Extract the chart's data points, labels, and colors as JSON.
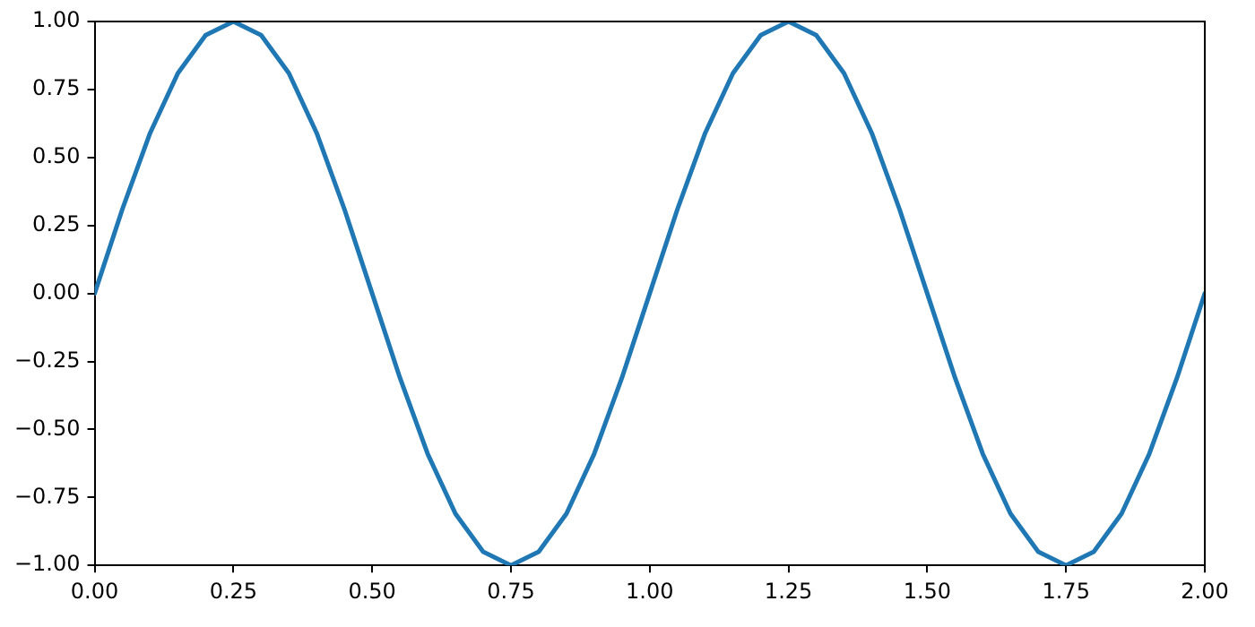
{
  "chart_data": {
    "type": "line",
    "x": [
      0,
      0.05,
      0.1,
      0.15,
      0.2,
      0.25,
      0.3,
      0.35,
      0.4,
      0.45,
      0.5,
      0.55,
      0.6,
      0.65,
      0.7,
      0.75,
      0.8,
      0.85,
      0.9,
      0.95,
      1,
      1.05,
      1.1,
      1.15,
      1.2,
      1.25,
      1.3,
      1.35,
      1.4,
      1.45,
      1.5,
      1.55,
      1.6,
      1.65,
      1.7,
      1.75,
      1.8,
      1.85,
      1.9,
      1.95,
      2
    ],
    "series": [
      {
        "color": "#1f77b4",
        "values": [
          0,
          0.31,
          0.59,
          0.81,
          0.95,
          1,
          0.95,
          0.81,
          0.59,
          0.31,
          0,
          -0.31,
          -0.59,
          -0.81,
          -0.95,
          -1,
          -0.95,
          -0.81,
          -0.59,
          -0.31,
          0,
          0.31,
          0.59,
          0.81,
          0.95,
          1,
          0.95,
          0.81,
          0.59,
          0.31,
          0,
          -0.31,
          -0.59,
          -0.81,
          -0.95,
          -1,
          -0.95,
          -0.81,
          -0.59,
          -0.31,
          0
        ]
      }
    ],
    "xlim": [
      0,
      2
    ],
    "xticks": [
      {
        "value": 0,
        "label": "0.00"
      },
      {
        "value": 0.25,
        "label": "0.25"
      },
      {
        "value": 0.5,
        "label": "0.50"
      },
      {
        "value": 0.75,
        "label": "0.75"
      },
      {
        "value": 1,
        "label": "1.00"
      },
      {
        "value": 1.25,
        "label": "1.25"
      },
      {
        "value": 1.5,
        "label": "1.50"
      },
      {
        "value": 1.75,
        "label": "1.75"
      },
      {
        "value": 2,
        "label": "2.00"
      }
    ],
    "ylim": [
      -1,
      1
    ],
    "yticks": [
      {
        "value": -1,
        "label": "−1.00"
      },
      {
        "value": -0.75,
        "label": "−0.75"
      },
      {
        "value": -0.5,
        "label": "−0.50"
      },
      {
        "value": -0.25,
        "label": "−0.25"
      },
      {
        "value": 0,
        "label": "0.00"
      },
      {
        "value": 0.25,
        "label": "0.25"
      },
      {
        "value": 0.5,
        "label": "0.50"
      },
      {
        "value": 0.75,
        "label": "0.75"
      },
      {
        "value": 1,
        "label": "1.00"
      }
    ],
    "grid": false,
    "legend": false,
    "marker": "none",
    "line_style": "solid"
  }
}
